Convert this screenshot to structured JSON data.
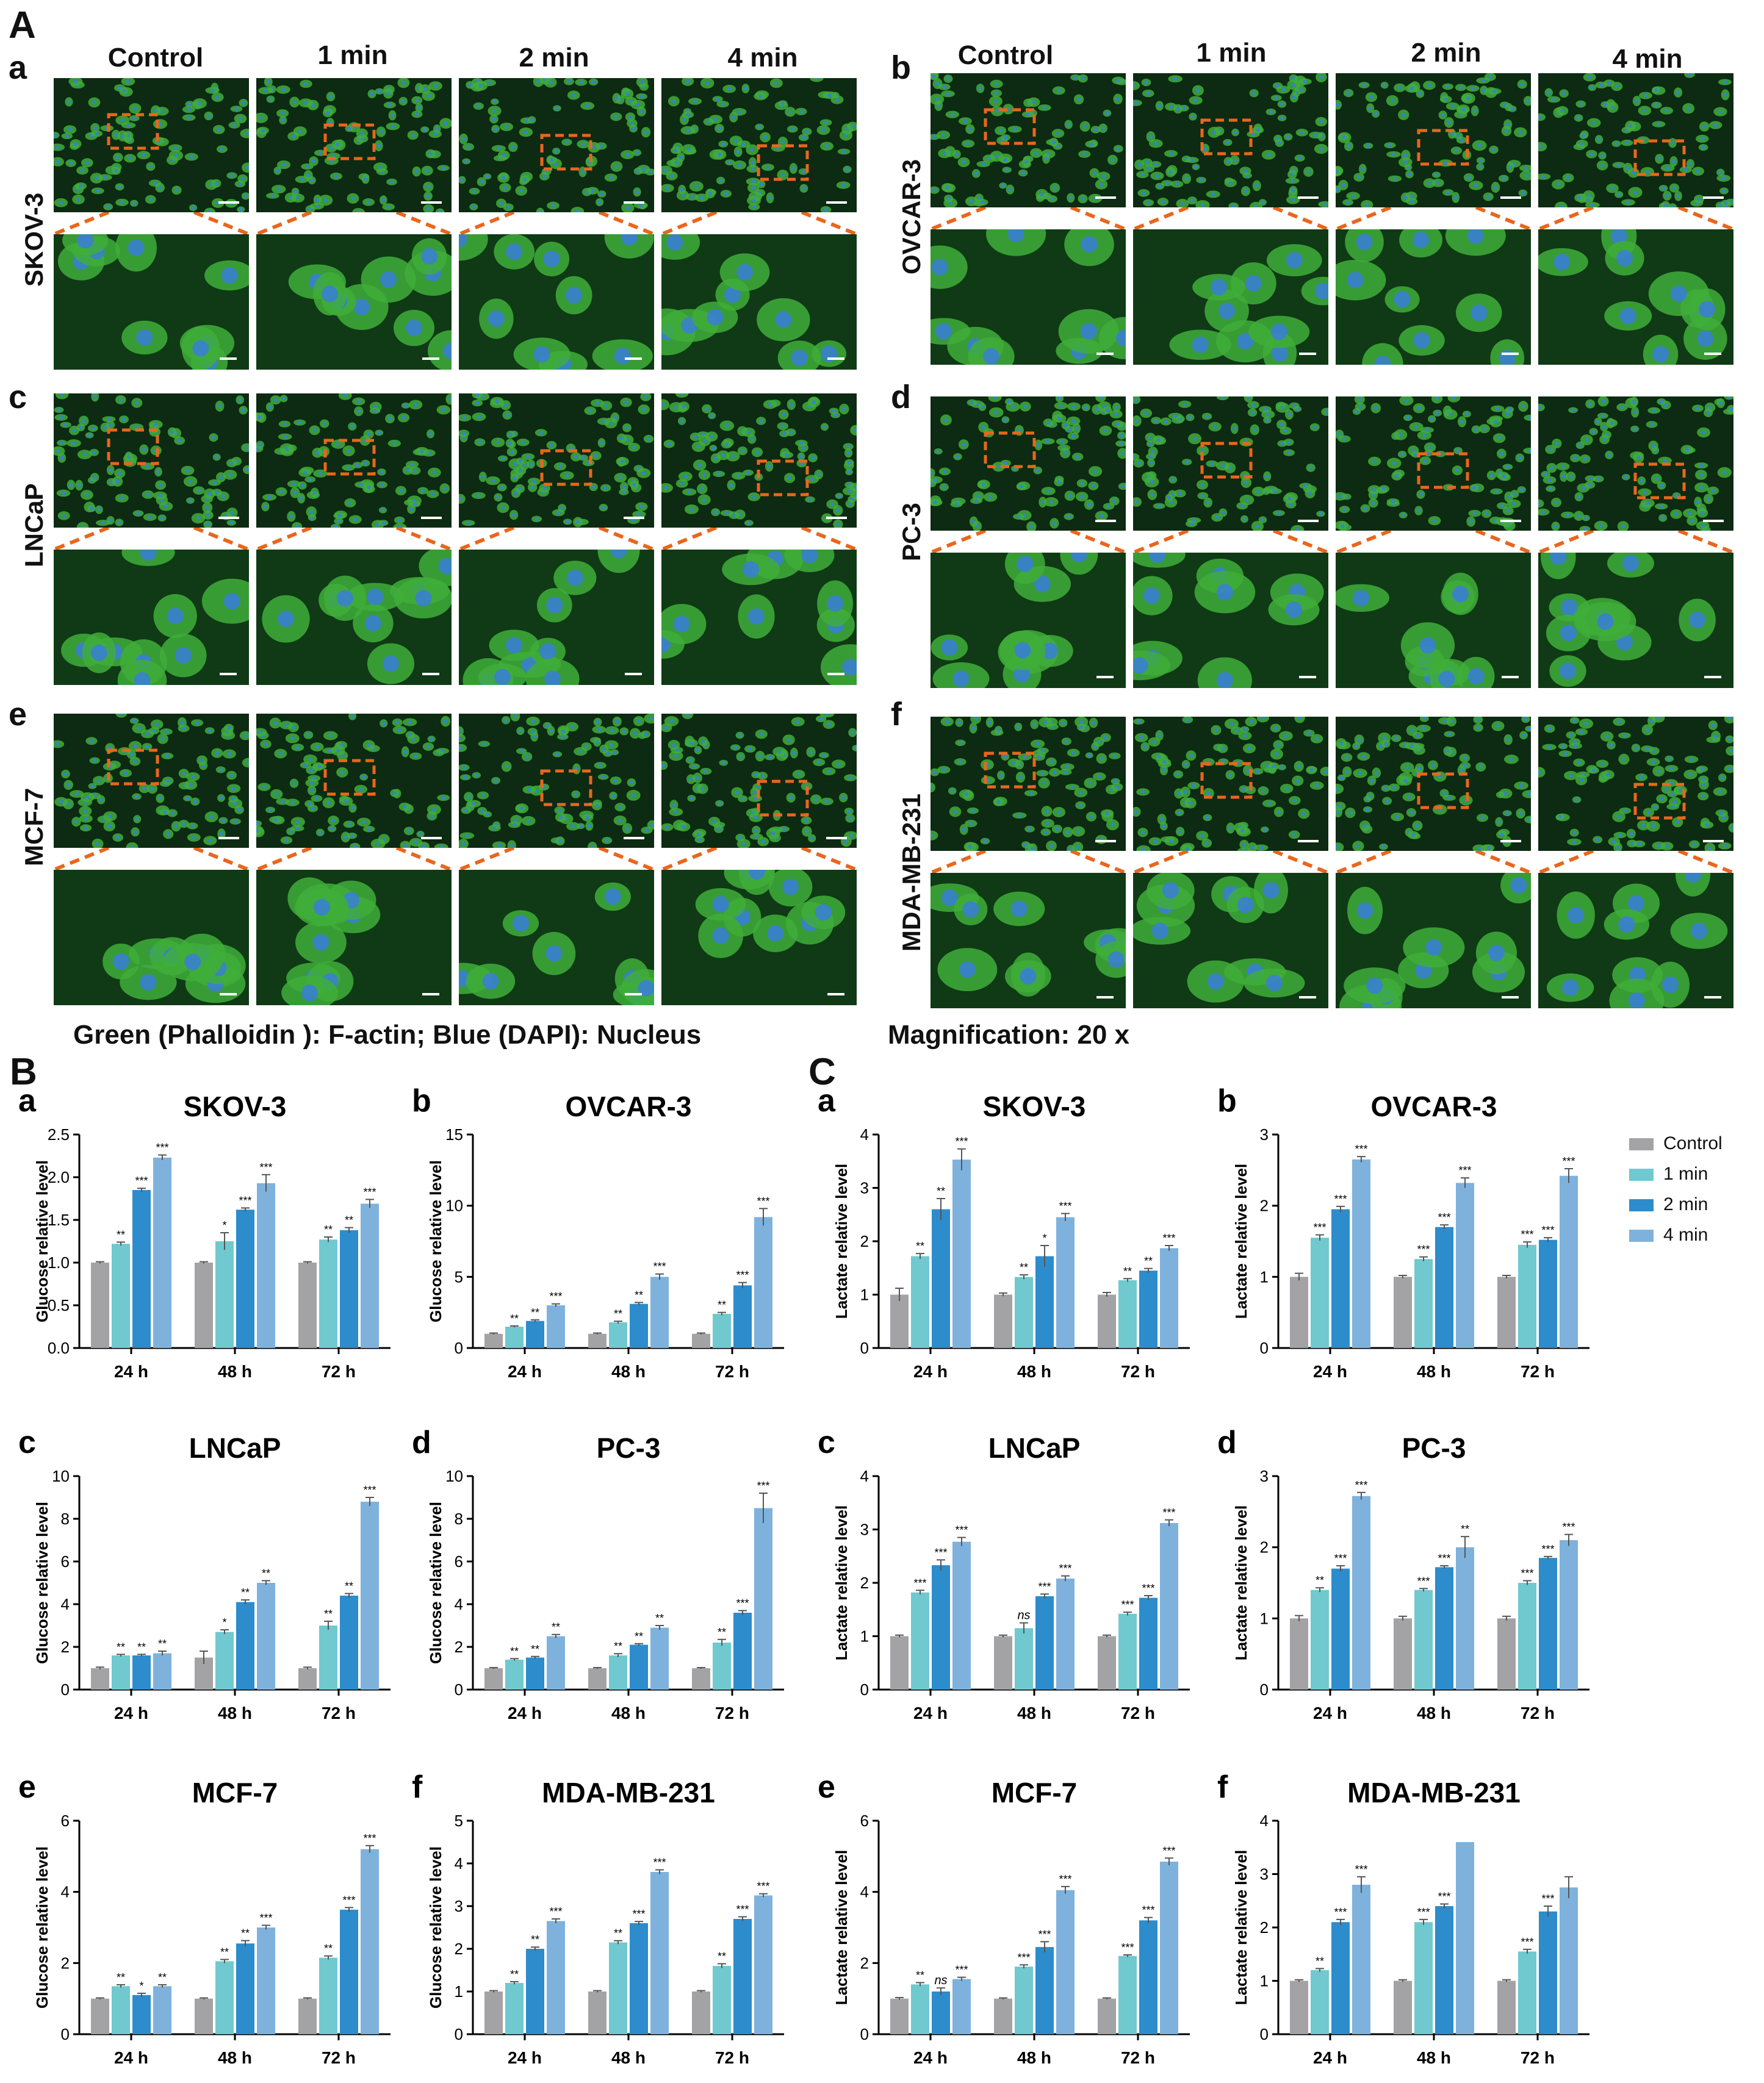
{
  "figure": {
    "panel_A": "A",
    "panel_B": "B",
    "panel_C": "C",
    "caption": "Green (Phalloidin ): F-actin;  Blue (DAPI): Nucleus",
    "magnification": "Magnification: 20  x",
    "columns": [
      "Control",
      "1 min",
      "2 min",
      "4 min"
    ]
  },
  "micro_panels": [
    {
      "letter": "a",
      "cell_line": "SKOV-3"
    },
    {
      "letter": "b",
      "cell_line": "OVCAR-3"
    },
    {
      "letter": "c",
      "cell_line": "LNCaP"
    },
    {
      "letter": "d",
      "cell_line": "PC-3"
    },
    {
      "letter": "e",
      "cell_line": "MCF-7"
    },
    {
      "letter": "f",
      "cell_line": "MDA-MB-231"
    }
  ],
  "legend": [
    "Control",
    "1 min",
    "2 min",
    "4 min"
  ],
  "colors": {
    "control": "#a3a3a6",
    "min1": "#6fc9cf",
    "min2": "#2c8ccc",
    "min4": "#7eb2dd",
    "green": "#2f9e2a",
    "orange": "#e9661c"
  },
  "chart_data": [
    {
      "type": "bar",
      "letter": "a",
      "title": "SKOV-3",
      "ylabel": "Glucose relative level",
      "categories": [
        "24 h",
        "48 h",
        "72 h"
      ],
      "ylim": [
        0,
        2.5
      ],
      "ticks": [
        "0.0",
        "0.5",
        "1.0",
        "1.5",
        "2.0",
        "2.5"
      ],
      "series": [
        {
          "name": "Control",
          "values": [
            1.0,
            1.0,
            1.0
          ]
        },
        {
          "name": "1 min",
          "values": [
            1.22,
            1.25,
            1.27
          ]
        },
        {
          "name": "2 min",
          "values": [
            1.85,
            1.62,
            1.38
          ]
        },
        {
          "name": "4 min",
          "values": [
            2.23,
            1.93,
            1.69
          ]
        }
      ],
      "errors": [
        [
          0.01,
          0.01,
          0.01
        ],
        [
          0.02,
          0.1,
          0.03
        ],
        [
          0.02,
          0.02,
          0.03
        ],
        [
          0.03,
          0.1,
          0.05
        ]
      ],
      "sig": [
        [
          "",
          "",
          ""
        ],
        [
          "**",
          "*",
          "**"
        ],
        [
          "***",
          "***",
          "**"
        ],
        [
          "***",
          "***",
          "***"
        ]
      ]
    },
    {
      "type": "bar",
      "letter": "b",
      "title": "OVCAR-3",
      "ylabel": "Glucose relative level",
      "categories": [
        "24 h",
        "48 h",
        "72 h"
      ],
      "ylim": [
        0,
        15
      ],
      "ticks": [
        "0",
        "5",
        "10",
        "15"
      ],
      "series": [
        {
          "name": "Control",
          "values": [
            1.0,
            1.0,
            1.0
          ]
        },
        {
          "name": "1 min",
          "values": [
            1.5,
            1.8,
            2.4
          ]
        },
        {
          "name": "2 min",
          "values": [
            1.9,
            3.1,
            4.4
          ]
        },
        {
          "name": "4 min",
          "values": [
            3.0,
            5.0,
            9.2
          ]
        }
      ],
      "errors": [
        [
          0.05,
          0.05,
          0.05
        ],
        [
          0.05,
          0.08,
          0.1
        ],
        [
          0.08,
          0.1,
          0.2
        ],
        [
          0.1,
          0.2,
          0.6
        ]
      ],
      "sig": [
        [
          "",
          "",
          ""
        ],
        [
          "**",
          "**",
          "**"
        ],
        [
          "**",
          "**",
          "***"
        ],
        [
          "***",
          "***",
          "***"
        ]
      ]
    },
    {
      "type": "bar",
      "letter": "c",
      "title": "LNCaP",
      "ylabel": "Glucose relative level",
      "categories": [
        "24 h",
        "48 h",
        "72 h"
      ],
      "ylim": [
        0,
        10
      ],
      "ticks": [
        "0",
        "2",
        "4",
        "6",
        "8",
        "10"
      ],
      "series": [
        {
          "name": "Control",
          "values": [
            1.0,
            1.5,
            1.0
          ]
        },
        {
          "name": "1 min",
          "values": [
            1.6,
            2.7,
            3.0
          ]
        },
        {
          "name": "2 min",
          "values": [
            1.6,
            4.1,
            4.4
          ]
        },
        {
          "name": "4 min",
          "values": [
            1.7,
            5.0,
            8.8
          ]
        }
      ],
      "errors": [
        [
          0.05,
          0.3,
          0.05
        ],
        [
          0.05,
          0.1,
          0.2
        ],
        [
          0.05,
          0.1,
          0.1
        ],
        [
          0.1,
          0.1,
          0.2
        ]
      ],
      "sig": [
        [
          "",
          "",
          ""
        ],
        [
          "**",
          "*",
          "**"
        ],
        [
          "**",
          "**",
          "**"
        ],
        [
          "**",
          "**",
          "***"
        ]
      ]
    },
    {
      "type": "bar",
      "letter": "d",
      "title": "PC-3",
      "ylabel": "Glucose relative level",
      "categories": [
        "24 h",
        "48 h",
        "72 h"
      ],
      "ylim": [
        0,
        10
      ],
      "ticks": [
        "0",
        "2",
        "4",
        "6",
        "8",
        "10"
      ],
      "series": [
        {
          "name": "Control",
          "values": [
            1.0,
            1.0,
            1.0
          ]
        },
        {
          "name": "1 min",
          "values": [
            1.4,
            1.6,
            2.2
          ]
        },
        {
          "name": "2 min",
          "values": [
            1.5,
            2.1,
            3.6
          ]
        },
        {
          "name": "4 min",
          "values": [
            2.5,
            2.9,
            8.5
          ]
        }
      ],
      "errors": [
        [
          0.03,
          0.03,
          0.03
        ],
        [
          0.05,
          0.08,
          0.15
        ],
        [
          0.05,
          0.05,
          0.1
        ],
        [
          0.08,
          0.1,
          0.7
        ]
      ],
      "sig": [
        [
          "",
          "",
          ""
        ],
        [
          "**",
          "**",
          "**"
        ],
        [
          "**",
          "**",
          "***"
        ],
        [
          "**",
          "**",
          "***"
        ]
      ]
    },
    {
      "type": "bar",
      "letter": "e",
      "title": "MCF-7",
      "ylabel": "Glucose relative level",
      "categories": [
        "24 h",
        "48 h",
        "72 h"
      ],
      "ylim": [
        0,
        6
      ],
      "ticks": [
        "0",
        "2",
        "4",
        "6"
      ],
      "series": [
        {
          "name": "Control",
          "values": [
            1.0,
            1.0,
            1.0
          ]
        },
        {
          "name": "1 min",
          "values": [
            1.35,
            2.05,
            2.15
          ]
        },
        {
          "name": "2 min",
          "values": [
            1.1,
            2.55,
            3.5
          ]
        },
        {
          "name": "4 min",
          "values": [
            1.35,
            3.0,
            5.2
          ]
        }
      ],
      "errors": [
        [
          0.02,
          0.02,
          0.02
        ],
        [
          0.04,
          0.05,
          0.05
        ],
        [
          0.05,
          0.08,
          0.06
        ],
        [
          0.04,
          0.06,
          0.1
        ]
      ],
      "sig": [
        [
          "",
          "",
          ""
        ],
        [
          "**",
          "**",
          "**"
        ],
        [
          "*",
          "**",
          "***"
        ],
        [
          "**",
          "***",
          "***"
        ]
      ]
    },
    {
      "type": "bar",
      "letter": "f",
      "title": "MDA-MB-231",
      "ylabel": "Glucose relative level",
      "categories": [
        "24 h",
        "48 h",
        "72 h"
      ],
      "ylim": [
        0,
        5
      ],
      "ticks": [
        "0",
        "1",
        "2",
        "3",
        "4",
        "5"
      ],
      "series": [
        {
          "name": "Control",
          "values": [
            1.0,
            1.0,
            1.0
          ]
        },
        {
          "name": "1 min",
          "values": [
            1.2,
            2.15,
            1.6
          ]
        },
        {
          "name": "2 min",
          "values": [
            2.0,
            2.6,
            2.7
          ]
        },
        {
          "name": "4 min",
          "values": [
            2.65,
            3.8,
            3.25
          ]
        }
      ],
      "errors": [
        [
          0.02,
          0.02,
          0.02
        ],
        [
          0.03,
          0.04,
          0.05
        ],
        [
          0.04,
          0.04,
          0.05
        ],
        [
          0.05,
          0.05,
          0.04
        ]
      ],
      "sig": [
        [
          "",
          "",
          ""
        ],
        [
          "**",
          "**",
          "**"
        ],
        [
          "**",
          "***",
          "***"
        ],
        [
          "***",
          "***",
          "***"
        ]
      ]
    },
    {
      "type": "bar",
      "letter": "a",
      "title": "SKOV-3",
      "ylabel": "Lactate relative level",
      "categories": [
        "24 h",
        "48 h",
        "72 h"
      ],
      "ylim": [
        0,
        4
      ],
      "ticks": [
        "0",
        "1",
        "2",
        "3",
        "4"
      ],
      "series": [
        {
          "name": "Control",
          "values": [
            1.0,
            1.0,
            1.0
          ]
        },
        {
          "name": "1 min",
          "values": [
            1.72,
            1.33,
            1.27
          ]
        },
        {
          "name": "2 min",
          "values": [
            2.6,
            1.72,
            1.45
          ]
        },
        {
          "name": "4 min",
          "values": [
            3.53,
            2.45,
            1.87
          ]
        }
      ],
      "errors": [
        [
          0.12,
          0.03,
          0.04
        ],
        [
          0.05,
          0.04,
          0.03
        ],
        [
          0.2,
          0.2,
          0.04
        ],
        [
          0.2,
          0.07,
          0.05
        ]
      ],
      "sig": [
        [
          "",
          "",
          ""
        ],
        [
          "**",
          "**",
          "**"
        ],
        [
          "**",
          "*",
          "**"
        ],
        [
          "***",
          "***",
          "***"
        ]
      ]
    },
    {
      "type": "bar",
      "letter": "b",
      "title": "OVCAR-3",
      "ylabel": "Lactate relative level",
      "categories": [
        "24 h",
        "48 h",
        "72 h"
      ],
      "ylim": [
        0,
        3
      ],
      "ticks": [
        "0",
        "1",
        "2",
        "3"
      ],
      "series": [
        {
          "name": "Control",
          "values": [
            1.0,
            1.0,
            1.0
          ]
        },
        {
          "name": "1 min",
          "values": [
            1.55,
            1.25,
            1.45
          ]
        },
        {
          "name": "2 min",
          "values": [
            1.95,
            1.7,
            1.52
          ]
        },
        {
          "name": "4 min",
          "values": [
            2.65,
            2.32,
            2.42
          ]
        }
      ],
      "errors": [
        [
          0.05,
          0.02,
          0.02
        ],
        [
          0.04,
          0.03,
          0.04
        ],
        [
          0.04,
          0.03,
          0.03
        ],
        [
          0.04,
          0.07,
          0.1
        ]
      ],
      "sig": [
        [
          "",
          "",
          ""
        ],
        [
          "***",
          "***",
          "***"
        ],
        [
          "***",
          "***",
          "***"
        ],
        [
          "***",
          "***",
          "***"
        ]
      ]
    },
    {
      "type": "bar",
      "letter": "c",
      "title": "LNCaP",
      "ylabel": "Lactate relative level",
      "categories": [
        "24 h",
        "48 h",
        "72 h"
      ],
      "ylim": [
        0,
        4
      ],
      "ticks": [
        "0",
        "1",
        "2",
        "3",
        "4"
      ],
      "series": [
        {
          "name": "Control",
          "values": [
            1.0,
            1.0,
            1.0
          ]
        },
        {
          "name": "1 min",
          "values": [
            1.82,
            1.15,
            1.42
          ]
        },
        {
          "name": "2 min",
          "values": [
            2.33,
            1.75,
            1.72
          ]
        },
        {
          "name": "4 min",
          "values": [
            2.77,
            2.08,
            3.12
          ]
        }
      ],
      "errors": [
        [
          0.02,
          0.02,
          0.02
        ],
        [
          0.04,
          0.1,
          0.03
        ],
        [
          0.1,
          0.04,
          0.04
        ],
        [
          0.08,
          0.05,
          0.06
        ]
      ],
      "sig": [
        [
          "",
          "",
          ""
        ],
        [
          "***",
          "ns",
          "***"
        ],
        [
          "***",
          "***",
          "***"
        ],
        [
          "***",
          "***",
          "***"
        ]
      ]
    },
    {
      "type": "bar",
      "letter": "d",
      "title": "PC-3",
      "ylabel": "Lactate relative level",
      "categories": [
        "24 h",
        "48 h",
        "72 h"
      ],
      "ylim": [
        0,
        3
      ],
      "ticks": [
        "0",
        "1",
        "2",
        "3"
      ],
      "series": [
        {
          "name": "Control",
          "values": [
            1.0,
            1.0,
            1.0
          ]
        },
        {
          "name": "1 min",
          "values": [
            1.4,
            1.4,
            1.5
          ]
        },
        {
          "name": "2 min",
          "values": [
            1.7,
            1.72,
            1.85
          ]
        },
        {
          "name": "4 min",
          "values": [
            2.72,
            2.0,
            2.1
          ]
        }
      ],
      "errors": [
        [
          0.04,
          0.03,
          0.03
        ],
        [
          0.03,
          0.02,
          0.03
        ],
        [
          0.04,
          0.02,
          0.02
        ],
        [
          0.05,
          0.15,
          0.08
        ]
      ],
      "sig": [
        [
          "",
          "",
          ""
        ],
        [
          "**",
          "***",
          "***"
        ],
        [
          "***",
          "***",
          "***"
        ],
        [
          "***",
          "**",
          "***"
        ]
      ]
    },
    {
      "type": "bar",
      "letter": "e",
      "title": "MCF-7",
      "ylabel": "Lactate relative level",
      "categories": [
        "24 h",
        "48 h",
        "72 h"
      ],
      "ylim": [
        0,
        6
      ],
      "ticks": [
        "0",
        "2",
        "4",
        "6"
      ],
      "series": [
        {
          "name": "Control",
          "values": [
            1.0,
            1.0,
            1.0
          ]
        },
        {
          "name": "1 min",
          "values": [
            1.4,
            1.9,
            2.2
          ]
        },
        {
          "name": "2 min",
          "values": [
            1.2,
            2.45,
            3.2
          ]
        },
        {
          "name": "4 min",
          "values": [
            1.55,
            4.05,
            4.85
          ]
        }
      ],
      "errors": [
        [
          0.03,
          0.02,
          0.02
        ],
        [
          0.05,
          0.05,
          0.03
        ],
        [
          0.1,
          0.15,
          0.08
        ],
        [
          0.05,
          0.1,
          0.1
        ]
      ],
      "sig": [
        [
          "",
          "",
          ""
        ],
        [
          "**",
          "***",
          "***"
        ],
        [
          "ns",
          "***",
          "***"
        ],
        [
          "***",
          "***",
          "***"
        ]
      ]
    },
    {
      "type": "bar",
      "letter": "f",
      "title": "MDA-MB-231",
      "ylabel": "Lactate relative level",
      "categories": [
        "24 h",
        "48 h",
        "72 h"
      ],
      "ylim": [
        0,
        4
      ],
      "ticks": [
        "0",
        "1",
        "2",
        "3",
        "4"
      ],
      "series": [
        {
          "name": "Control",
          "values": [
            1.0,
            1.0,
            1.0
          ]
        },
        {
          "name": "1 min",
          "values": [
            1.2,
            2.1,
            1.55
          ]
        },
        {
          "name": "2 min",
          "values": [
            2.1,
            2.4,
            2.3
          ]
        },
        {
          "name": "4 min",
          "values": [
            2.8,
            3.6,
            2.75
          ]
        }
      ],
      "errors": [
        [
          0.02,
          0.02,
          0.02
        ],
        [
          0.03,
          0.05,
          0.04
        ],
        [
          0.05,
          0.04,
          0.1
        ],
        [
          0.15,
          0.0,
          0.2
        ]
      ],
      "sig": [
        [
          "",
          "",
          ""
        ],
        [
          "**",
          "***",
          "***"
        ],
        [
          "***",
          "***",
          "***"
        ],
        [
          "***",
          "",
          ""
        ]
      ]
    }
  ]
}
